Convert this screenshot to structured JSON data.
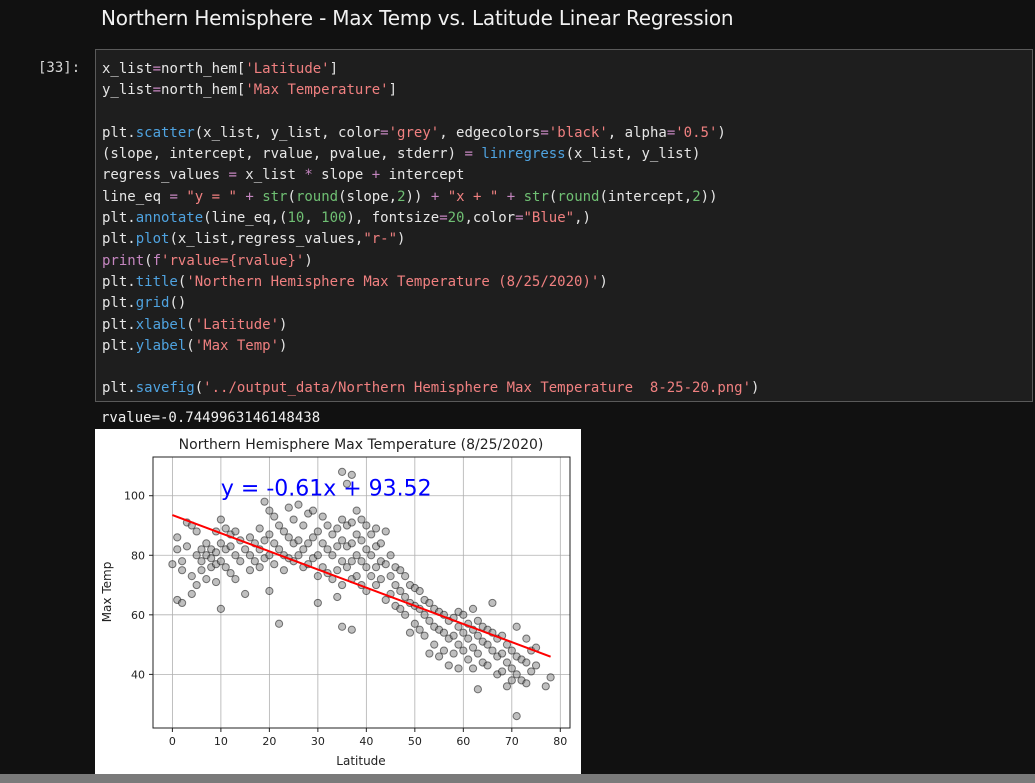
{
  "notebook": {
    "heading": "Northern Hemisphere - Max Temp vs. Latitude Linear Regression",
    "prompt": "[33]:",
    "code_lines": [
      "x_list=north_hem['Latitude']",
      "y_list=north_hem['Max Temperature']",
      "",
      "plt.scatter(x_list, y_list, color='grey', edgecolors='black', alpha='0.5')",
      "(slope, intercept, rvalue, pvalue, stderr) = linregress(x_list, y_list)",
      "regress_values = x_list * slope + intercept",
      "line_eq = \"y = \" + str(round(slope,2)) + \"x + \" + str(round(intercept,2))",
      "plt.annotate(line_eq,(10, 100), fontsize=20,color=\"Blue\",)",
      "plt.plot(x_list,regress_values,\"r-\")",
      "print(f'rvalue={rvalue}')",
      "plt.title('Northern Hemisphere Max Temperature (8/25/2020)')",
      "plt.grid()",
      "plt.xlabel('Latitude')",
      "plt.ylabel('Max Temp')",
      "",
      "plt.savefig('../output_data/Northern Hemisphere Max Temperature  8-25-20.png')"
    ],
    "output_text": "rvalue=-0.7449963146148438"
  },
  "colors": {
    "string": "#f08080",
    "function": "#4fa3e0",
    "keyword": "#c586c0",
    "number": "#6fbf73",
    "annotation": "#0000ff",
    "regression_line": "#ff0000",
    "points": "#808080"
  },
  "chart_data": {
    "type": "scatter",
    "title": "Northern Hemisphere Max Temperature (8/25/2020)",
    "xlabel": "Latitude",
    "ylabel": "Max Temp",
    "xlim": [
      -4,
      82
    ],
    "ylim": [
      22,
      113
    ],
    "xticks": [
      0,
      10,
      20,
      30,
      40,
      50,
      60,
      70,
      80
    ],
    "yticks": [
      40,
      60,
      80,
      100
    ],
    "grid": true,
    "annotation": {
      "text": "y = -0.61x + 93.52",
      "x": 10,
      "y": 100
    },
    "regression": {
      "slope": -0.61,
      "intercept": 93.52,
      "x_range": [
        0,
        78
      ]
    },
    "series": [
      {
        "points": [
          [
            0,
            77
          ],
          [
            1,
            82
          ],
          [
            1,
            86
          ],
          [
            1,
            65
          ],
          [
            2,
            64
          ],
          [
            2,
            75
          ],
          [
            2,
            78
          ],
          [
            3,
            91
          ],
          [
            3,
            83
          ],
          [
            4,
            90
          ],
          [
            4,
            73
          ],
          [
            4,
            67
          ],
          [
            5,
            88
          ],
          [
            5,
            80
          ],
          [
            5,
            70
          ],
          [
            6,
            82
          ],
          [
            6,
            78
          ],
          [
            6,
            75
          ],
          [
            7,
            84
          ],
          [
            7,
            80
          ],
          [
            7,
            72
          ],
          [
            8,
            82
          ],
          [
            8,
            79
          ],
          [
            8,
            76
          ],
          [
            9,
            88
          ],
          [
            9,
            81
          ],
          [
            9,
            77
          ],
          [
            9,
            71
          ],
          [
            10,
            92
          ],
          [
            10,
            84
          ],
          [
            10,
            78
          ],
          [
            10,
            62
          ],
          [
            11,
            89
          ],
          [
            11,
            82
          ],
          [
            11,
            76
          ],
          [
            12,
            87
          ],
          [
            12,
            83
          ],
          [
            12,
            74
          ],
          [
            13,
            88
          ],
          [
            13,
            80
          ],
          [
            13,
            72
          ],
          [
            14,
            85
          ],
          [
            14,
            78
          ],
          [
            15,
            82
          ],
          [
            15,
            67
          ],
          [
            16,
            86
          ],
          [
            16,
            80
          ],
          [
            16,
            75
          ],
          [
            17,
            84
          ],
          [
            17,
            78
          ],
          [
            18,
            89
          ],
          [
            18,
            82
          ],
          [
            18,
            76
          ],
          [
            19,
            98
          ],
          [
            19,
            85
          ],
          [
            19,
            79
          ],
          [
            20,
            95
          ],
          [
            20,
            87
          ],
          [
            20,
            80
          ],
          [
            20,
            68
          ],
          [
            21,
            93
          ],
          [
            21,
            84
          ],
          [
            21,
            77
          ],
          [
            22,
            90
          ],
          [
            22,
            82
          ],
          [
            22,
            57
          ],
          [
            23,
            88
          ],
          [
            23,
            80
          ],
          [
            23,
            75
          ],
          [
            24,
            96
          ],
          [
            24,
            86
          ],
          [
            24,
            79
          ],
          [
            25,
            92
          ],
          [
            25,
            84
          ],
          [
            25,
            78
          ],
          [
            26,
            97
          ],
          [
            26,
            85
          ],
          [
            26,
            80
          ],
          [
            27,
            90
          ],
          [
            27,
            82
          ],
          [
            27,
            76
          ],
          [
            28,
            94
          ],
          [
            28,
            84
          ],
          [
            28,
            77
          ],
          [
            29,
            95
          ],
          [
            29,
            86
          ],
          [
            29,
            79
          ],
          [
            30,
            88
          ],
          [
            30,
            80
          ],
          [
            30,
            73
          ],
          [
            30,
            64
          ],
          [
            31,
            93
          ],
          [
            31,
            84
          ],
          [
            31,
            76
          ],
          [
            32,
            90
          ],
          [
            32,
            82
          ],
          [
            32,
            74
          ],
          [
            33,
            87
          ],
          [
            33,
            80
          ],
          [
            33,
            72
          ],
          [
            34,
            89
          ],
          [
            34,
            83
          ],
          [
            34,
            75
          ],
          [
            34,
            66
          ],
          [
            35,
            108
          ],
          [
            35,
            92
          ],
          [
            35,
            85
          ],
          [
            35,
            78
          ],
          [
            35,
            70
          ],
          [
            35,
            56
          ],
          [
            36,
            104
          ],
          [
            36,
            90
          ],
          [
            36,
            83
          ],
          [
            36,
            76
          ],
          [
            37,
            107
          ],
          [
            37,
            91
          ],
          [
            37,
            84
          ],
          [
            37,
            78
          ],
          [
            37,
            72
          ],
          [
            37,
            55
          ],
          [
            38,
            95
          ],
          [
            38,
            87
          ],
          [
            38,
            80
          ],
          [
            38,
            73
          ],
          [
            39,
            92
          ],
          [
            39,
            85
          ],
          [
            39,
            78
          ],
          [
            39,
            70
          ],
          [
            40,
            90
          ],
          [
            40,
            82
          ],
          [
            40,
            76
          ],
          [
            40,
            68
          ],
          [
            41,
            87
          ],
          [
            41,
            80
          ],
          [
            41,
            73
          ],
          [
            42,
            89
          ],
          [
            42,
            83
          ],
          [
            42,
            76
          ],
          [
            42,
            70
          ],
          [
            43,
            84
          ],
          [
            43,
            78
          ],
          [
            43,
            72
          ],
          [
            44,
            88
          ],
          [
            44,
            77
          ],
          [
            44,
            65
          ],
          [
            45,
            80
          ],
          [
            45,
            73
          ],
          [
            45,
            67
          ],
          [
            46,
            76
          ],
          [
            46,
            70
          ],
          [
            46,
            63
          ],
          [
            47,
            75
          ],
          [
            47,
            68
          ],
          [
            47,
            62
          ],
          [
            48,
            73
          ],
          [
            48,
            66
          ],
          [
            48,
            60
          ],
          [
            49,
            70
          ],
          [
            49,
            64
          ],
          [
            49,
            54
          ],
          [
            50,
            69
          ],
          [
            50,
            63
          ],
          [
            50,
            57
          ],
          [
            51,
            68
          ],
          [
            51,
            62
          ],
          [
            51,
            55
          ],
          [
            52,
            65
          ],
          [
            52,
            60
          ],
          [
            52,
            53
          ],
          [
            53,
            64
          ],
          [
            53,
            58
          ],
          [
            53,
            47
          ],
          [
            54,
            62
          ],
          [
            54,
            56
          ],
          [
            54,
            50
          ],
          [
            55,
            61
          ],
          [
            55,
            55
          ],
          [
            55,
            46
          ],
          [
            56,
            60
          ],
          [
            56,
            54
          ],
          [
            56,
            48
          ],
          [
            57,
            58
          ],
          [
            57,
            52
          ],
          [
            57,
            43
          ],
          [
            58,
            59
          ],
          [
            58,
            53
          ],
          [
            58,
            47
          ],
          [
            59,
            61
          ],
          [
            59,
            56
          ],
          [
            59,
            50
          ],
          [
            59,
            42
          ],
          [
            60,
            60
          ],
          [
            60,
            54
          ],
          [
            60,
            48
          ],
          [
            61,
            57
          ],
          [
            61,
            52
          ],
          [
            61,
            45
          ],
          [
            62,
            62
          ],
          [
            62,
            55
          ],
          [
            62,
            49
          ],
          [
            62,
            42
          ],
          [
            63,
            58
          ],
          [
            63,
            53
          ],
          [
            63,
            47
          ],
          [
            63,
            35
          ],
          [
            64,
            56
          ],
          [
            64,
            51
          ],
          [
            64,
            44
          ],
          [
            65,
            55
          ],
          [
            65,
            50
          ],
          [
            65,
            43
          ],
          [
            66,
            64
          ],
          [
            66,
            54
          ],
          [
            66,
            48
          ],
          [
            67,
            52
          ],
          [
            67,
            46
          ],
          [
            67,
            40
          ],
          [
            68,
            53
          ],
          [
            68,
            47
          ],
          [
            68,
            41
          ],
          [
            69,
            50
          ],
          [
            69,
            44
          ],
          [
            69,
            36
          ],
          [
            70,
            48
          ],
          [
            70,
            42
          ],
          [
            70,
            38
          ],
          [
            71,
            56
          ],
          [
            71,
            46
          ],
          [
            71,
            40
          ],
          [
            71,
            26
          ],
          [
            72,
            45
          ],
          [
            72,
            38
          ],
          [
            73,
            52
          ],
          [
            73,
            44
          ],
          [
            73,
            37
          ],
          [
            74,
            48
          ],
          [
            74,
            41
          ],
          [
            75,
            49
          ],
          [
            75,
            43
          ],
          [
            77,
            36
          ],
          [
            78,
            39
          ]
        ]
      }
    ]
  }
}
